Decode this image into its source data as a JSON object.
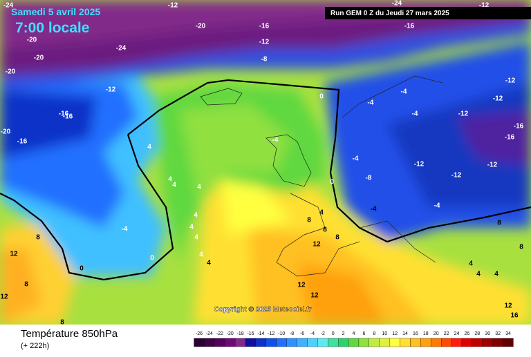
{
  "header": {
    "date": "Samedi 5 avril 2025",
    "time": "7:00 locale",
    "run": "Run GEM 0 Z du Jeudi 27 mars 2025"
  },
  "map": {
    "copyright": "Copyright © 2025 Meteociel.fr",
    "contour_labels": [
      "-24",
      "-20",
      "-20",
      "-20",
      "-20",
      "-24",
      "-24",
      "-20",
      "-16",
      "-16",
      "-16",
      "-12",
      "-12",
      "-12",
      "-12",
      "-12",
      "-12",
      "-12",
      "-12",
      "-8",
      "-16",
      "-16",
      "-16",
      "-16",
      "0",
      "0",
      "0",
      "0",
      "-4",
      "-4",
      "-4",
      "-4",
      "-4",
      "-4",
      "-4",
      "-4",
      "4",
      "4",
      "4",
      "4",
      "4",
      "4",
      "4",
      "4",
      "4",
      "4",
      "4",
      "4",
      "4",
      "8",
      "8",
      "8",
      "8",
      "8",
      "8",
      "8",
      "8",
      "12",
      "12",
      "12",
      "12",
      "12",
      "12",
      "16",
      "-8",
      "-12",
      "-12"
    ]
  },
  "footer": {
    "title": "Température 850hPa",
    "lead": "(+ 222h)"
  },
  "legend": {
    "scale": [
      -26,
      -24,
      -22,
      -20,
      -18,
      -16,
      -14,
      -12,
      -10,
      -8,
      -6,
      -4,
      -2,
      0,
      2,
      4,
      6,
      8,
      10,
      12,
      14,
      16,
      18,
      20,
      22,
      24,
      26,
      28,
      30,
      32,
      34
    ],
    "colors": [
      "#2b0033",
      "#400048",
      "#56005e",
      "#6c0a74",
      "#822a8a",
      "#1010a0",
      "#1030c8",
      "#1050e6",
      "#2070ff",
      "#3090ff",
      "#40b0ff",
      "#50d0ff",
      "#60e8f0",
      "#40e0a0",
      "#30d070",
      "#60d840",
      "#90e040",
      "#c0ec40",
      "#e0f040",
      "#ffff40",
      "#ffe030",
      "#ffc020",
      "#ffa010",
      "#ff7a00",
      "#ff4a00",
      "#ff1a10",
      "#e00000",
      "#c00000",
      "#a00000",
      "#800000",
      "#600000"
    ]
  }
}
